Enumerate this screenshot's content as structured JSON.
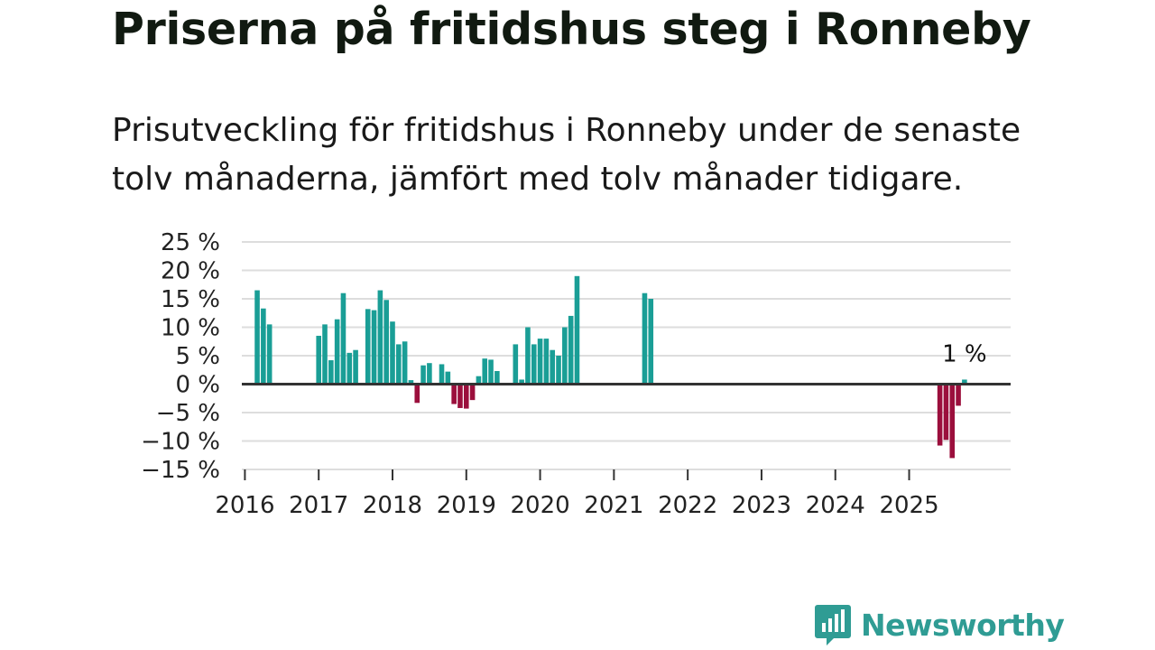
{
  "title": "Priserna på fritidshus steg i Ronneby",
  "subtitle": "Prisutveckling för fritidshus i Ronneby under de senaste tolv månaderna, jämfört med tolv månader tidigare.",
  "brand": {
    "name": "Newsworthy",
    "icon": "newsworthy-logo-icon",
    "color": "#2f9c94"
  },
  "colors": {
    "positive": "#1a9e96",
    "negative": "#9b0f3c",
    "grid": "#dddddd",
    "zero_line": "#333333"
  },
  "chart_data": {
    "type": "bar",
    "title": "Priserna på fritidshus steg i Ronneby",
    "xlabel": "",
    "ylabel": "",
    "ylim": [
      -15,
      25
    ],
    "yticks": [
      25,
      20,
      15,
      10,
      5,
      0,
      -5,
      -10,
      -15
    ],
    "ytick_labels": [
      "25 %",
      "20 %",
      "15 %",
      "10 %",
      "5 %",
      "0 %",
      "−5 %",
      "−10 %",
      "−15 %"
    ],
    "x_range": [
      "2016-01",
      "2026-06"
    ],
    "xticks": [
      "2016",
      "2017",
      "2018",
      "2019",
      "2020",
      "2021",
      "2022",
      "2023",
      "2024",
      "2025"
    ],
    "last_label": "1 %",
    "series": [
      {
        "name": "Prisutveckling",
        "points": [
          {
            "month": "2016-03",
            "value": 16.5
          },
          {
            "month": "2016-04",
            "value": 13.3
          },
          {
            "month": "2016-05",
            "value": 10.5
          },
          {
            "month": "2017-01",
            "value": 8.5
          },
          {
            "month": "2017-02",
            "value": 10.5
          },
          {
            "month": "2017-03",
            "value": 4.2
          },
          {
            "month": "2017-04",
            "value": 11.4
          },
          {
            "month": "2017-05",
            "value": 16.0
          },
          {
            "month": "2017-06",
            "value": 5.5
          },
          {
            "month": "2017-07",
            "value": 6.0
          },
          {
            "month": "2017-09",
            "value": 13.2
          },
          {
            "month": "2017-10",
            "value": 13.0
          },
          {
            "month": "2017-11",
            "value": 16.5
          },
          {
            "month": "2017-12",
            "value": 14.8
          },
          {
            "month": "2018-01",
            "value": 11.0
          },
          {
            "month": "2018-02",
            "value": 7.0
          },
          {
            "month": "2018-03",
            "value": 7.5
          },
          {
            "month": "2018-04",
            "value": 0.7
          },
          {
            "month": "2018-05",
            "value": -3.3
          },
          {
            "month": "2018-06",
            "value": 3.3
          },
          {
            "month": "2018-07",
            "value": 3.7
          },
          {
            "month": "2018-09",
            "value": 3.5
          },
          {
            "month": "2018-10",
            "value": 2.2
          },
          {
            "month": "2018-11",
            "value": -3.5
          },
          {
            "month": "2018-12",
            "value": -4.2
          },
          {
            "month": "2019-01",
            "value": -4.3
          },
          {
            "month": "2019-02",
            "value": -2.8
          },
          {
            "month": "2019-03",
            "value": 1.4
          },
          {
            "month": "2019-04",
            "value": 4.5
          },
          {
            "month": "2019-05",
            "value": 4.3
          },
          {
            "month": "2019-06",
            "value": 2.3
          },
          {
            "month": "2019-09",
            "value": 7.0
          },
          {
            "month": "2019-10",
            "value": 0.8
          },
          {
            "month": "2019-11",
            "value": 10.0
          },
          {
            "month": "2019-12",
            "value": 7.0
          },
          {
            "month": "2020-01",
            "value": 8.0
          },
          {
            "month": "2020-02",
            "value": 8.0
          },
          {
            "month": "2020-03",
            "value": 6.0
          },
          {
            "month": "2020-04",
            "value": 5.0
          },
          {
            "month": "2020-05",
            "value": 10.0
          },
          {
            "month": "2020-06",
            "value": 12.0
          },
          {
            "month": "2020-07",
            "value": 19.0
          },
          {
            "month": "2021-06",
            "value": 16.0
          },
          {
            "month": "2021-07",
            "value": 15.0
          },
          {
            "month": "2025-06",
            "value": -10.8
          },
          {
            "month": "2025-07",
            "value": -9.8
          },
          {
            "month": "2025-08",
            "value": -13.0
          },
          {
            "month": "2025-09",
            "value": -3.8
          },
          {
            "month": "2025-10",
            "value": 0.8
          }
        ]
      }
    ]
  }
}
